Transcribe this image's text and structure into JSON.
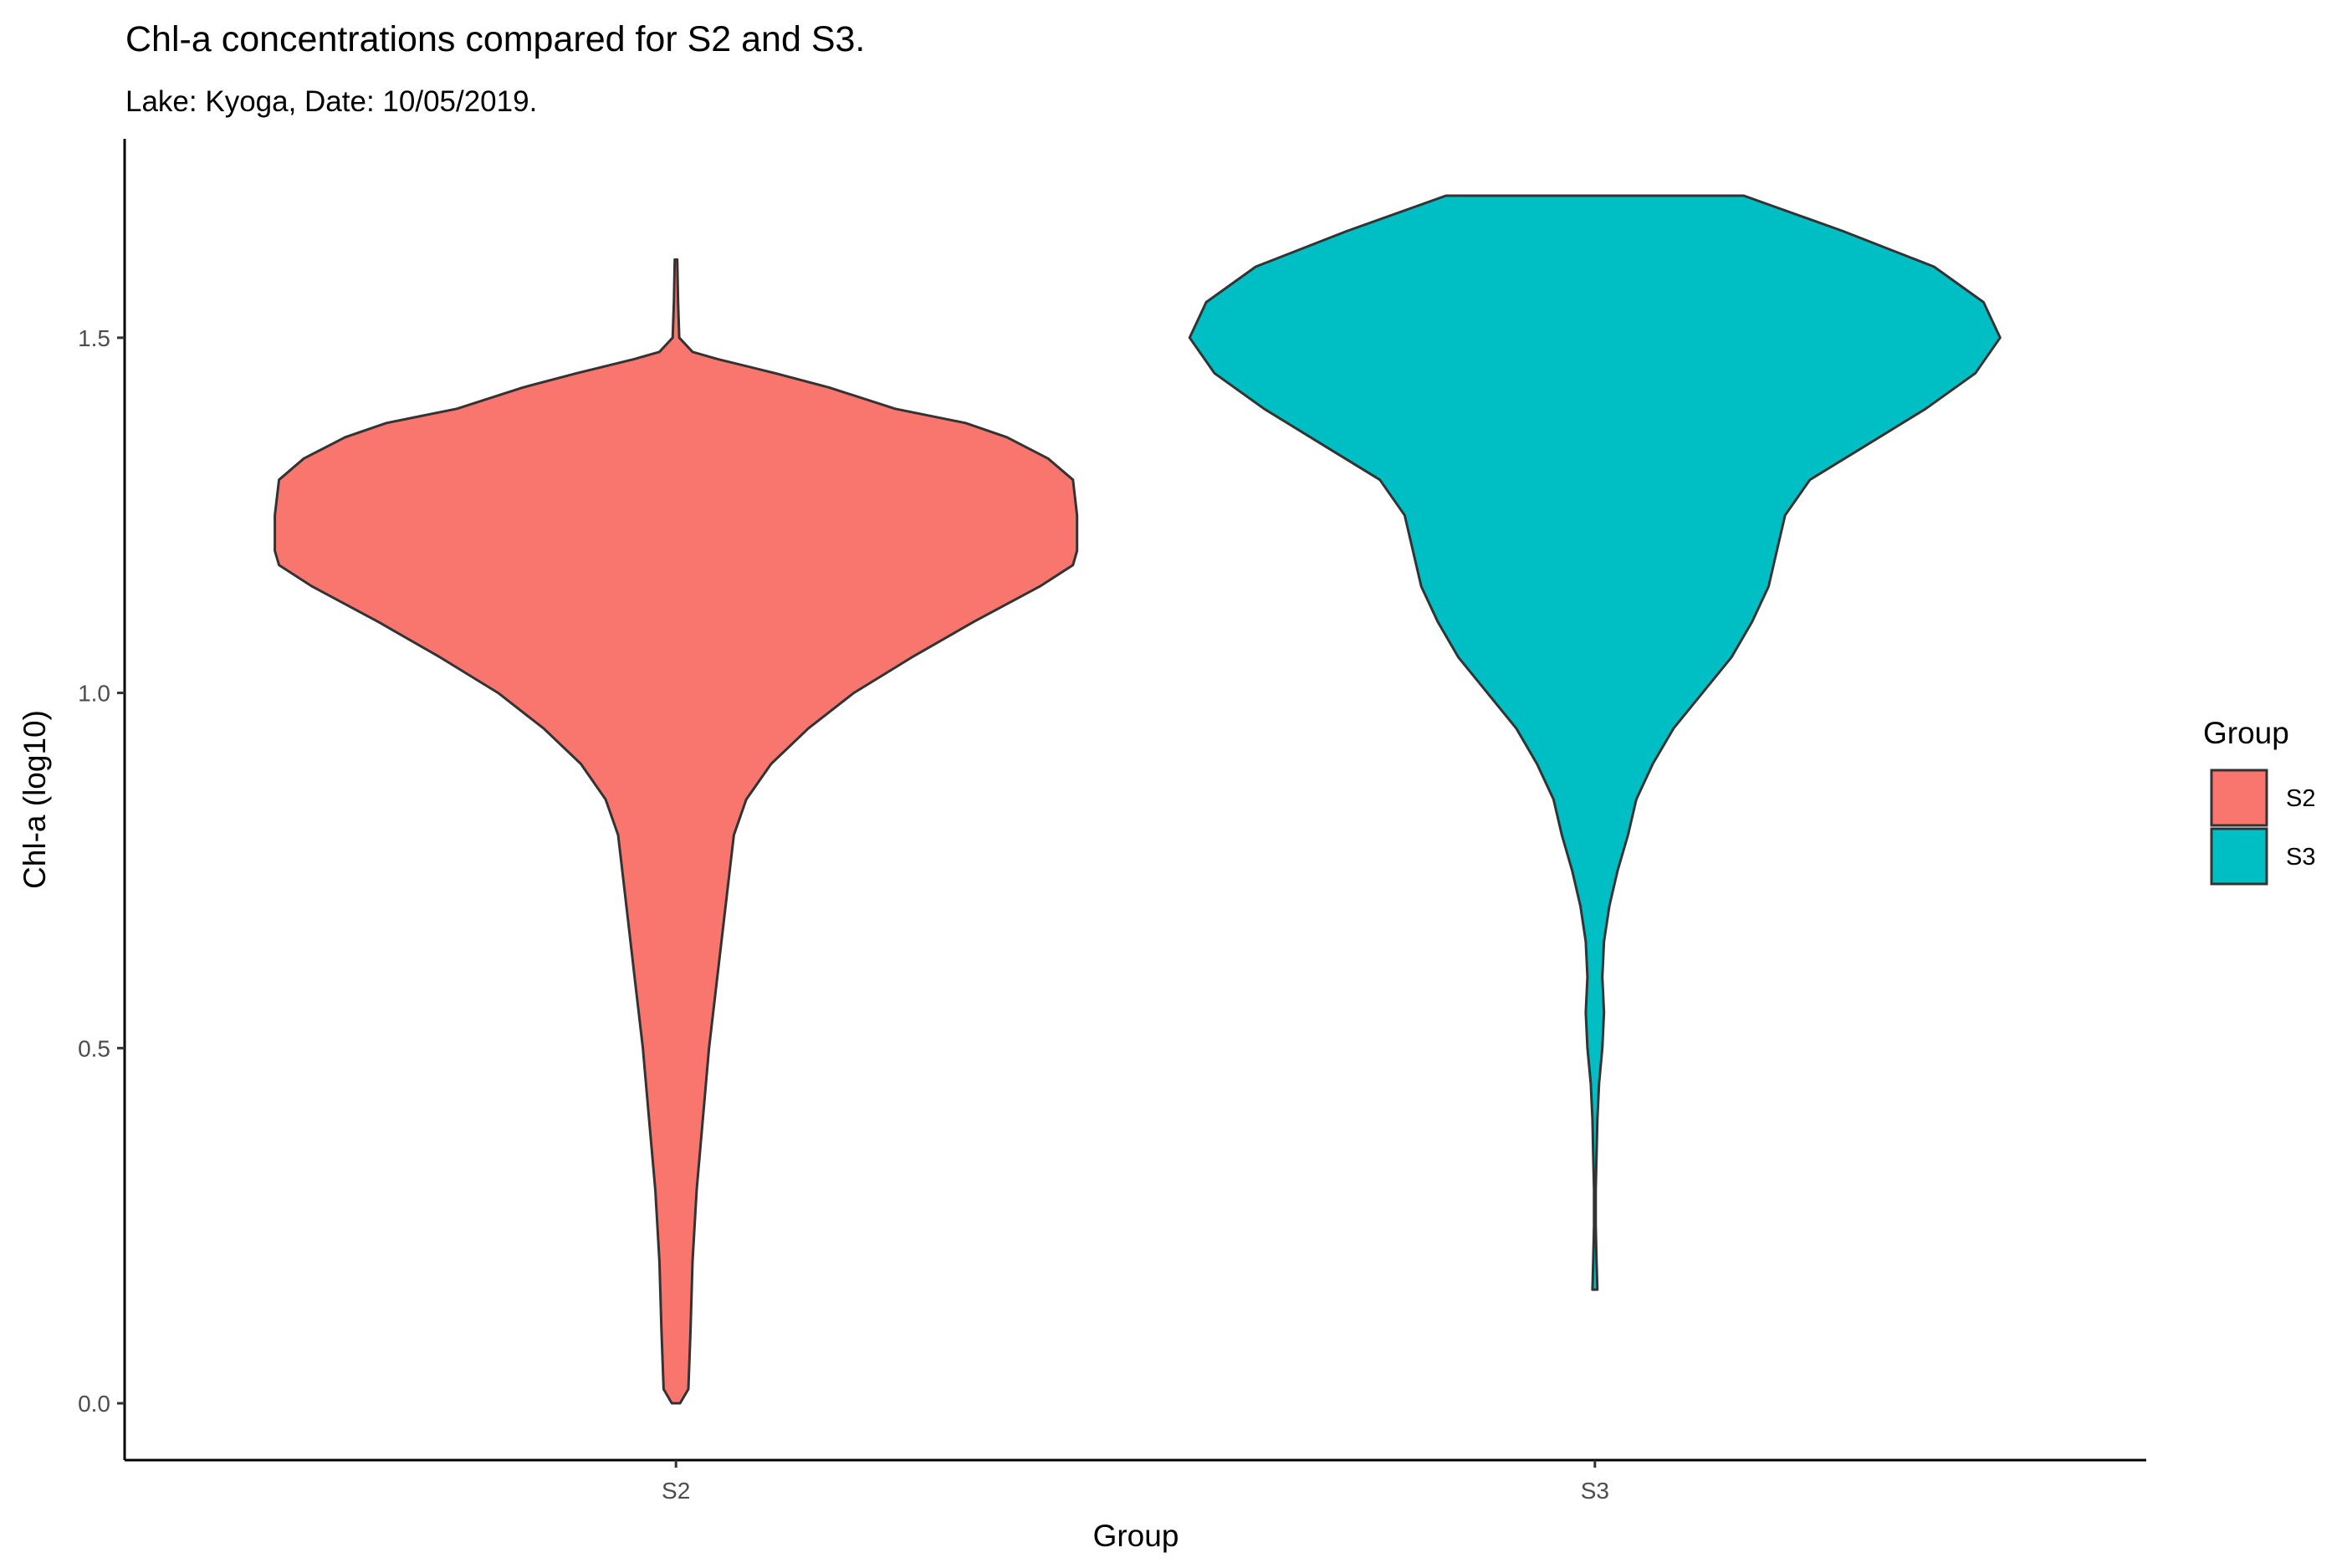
{
  "chart_data": {
    "type": "violin",
    "title": "Chl-a concentrations compared for S2 and S3.",
    "subtitle": "Lake: Kyoga, Date: 10/05/2019.",
    "xlabel": "Group",
    "ylabel": "Chl-a (log10)",
    "ylim": [
      -0.08,
      1.78
    ],
    "yticks": [
      "0.0",
      "0.5",
      "1.0",
      "1.5"
    ],
    "ytick_values": [
      0.0,
      0.5,
      1.0,
      1.5
    ],
    "categories": [
      "S2",
      "S3"
    ],
    "grid": false,
    "legend": {
      "title": "Group",
      "position": "right",
      "entries": [
        "S2",
        "S3"
      ]
    },
    "series": [
      {
        "name": "S2",
        "color": "#F8766D",
        "profile": [
          [
            0.0,
            0.01
          ],
          [
            0.02,
            0.03
          ],
          [
            0.1,
            0.035
          ],
          [
            0.2,
            0.04
          ],
          [
            0.3,
            0.05
          ],
          [
            0.4,
            0.065
          ],
          [
            0.5,
            0.08
          ],
          [
            0.6,
            0.1
          ],
          [
            0.7,
            0.12
          ],
          [
            0.8,
            0.14
          ],
          [
            0.85,
            0.17
          ],
          [
            0.9,
            0.23
          ],
          [
            0.95,
            0.32
          ],
          [
            1.0,
            0.43
          ],
          [
            1.05,
            0.57
          ],
          [
            1.1,
            0.72
          ],
          [
            1.15,
            0.88
          ],
          [
            1.18,
            0.96
          ],
          [
            1.2,
            0.97
          ],
          [
            1.25,
            0.97
          ],
          [
            1.3,
            0.96
          ],
          [
            1.33,
            0.9
          ],
          [
            1.36,
            0.8
          ],
          [
            1.38,
            0.7
          ],
          [
            1.4,
            0.53
          ],
          [
            1.43,
            0.37
          ],
          [
            1.45,
            0.24
          ],
          [
            1.47,
            0.1
          ],
          [
            1.48,
            0.04
          ],
          [
            1.5,
            0.008
          ],
          [
            1.55,
            0.005
          ],
          [
            1.61,
            0.003
          ]
        ]
      },
      {
        "name": "S3",
        "color": "#00BFC4",
        "profile": [
          [
            0.16,
            0.006
          ],
          [
            0.2,
            0.004
          ],
          [
            0.25,
            0.002
          ],
          [
            0.3,
            0.002
          ],
          [
            0.35,
            0.004
          ],
          [
            0.4,
            0.006
          ],
          [
            0.45,
            0.01
          ],
          [
            0.5,
            0.018
          ],
          [
            0.55,
            0.022
          ],
          [
            0.6,
            0.018
          ],
          [
            0.65,
            0.022
          ],
          [
            0.7,
            0.035
          ],
          [
            0.75,
            0.055
          ],
          [
            0.8,
            0.08
          ],
          [
            0.85,
            0.1
          ],
          [
            0.9,
            0.14
          ],
          [
            0.95,
            0.19
          ],
          [
            1.0,
            0.26
          ],
          [
            1.05,
            0.33
          ],
          [
            1.1,
            0.38
          ],
          [
            1.15,
            0.42
          ],
          [
            1.2,
            0.44
          ],
          [
            1.25,
            0.46
          ],
          [
            1.3,
            0.52
          ],
          [
            1.35,
            0.66
          ],
          [
            1.4,
            0.8
          ],
          [
            1.45,
            0.92
          ],
          [
            1.5,
            0.98
          ],
          [
            1.55,
            0.94
          ],
          [
            1.6,
            0.82
          ],
          [
            1.65,
            0.6
          ],
          [
            1.7,
            0.36
          ]
        ]
      }
    ]
  }
}
